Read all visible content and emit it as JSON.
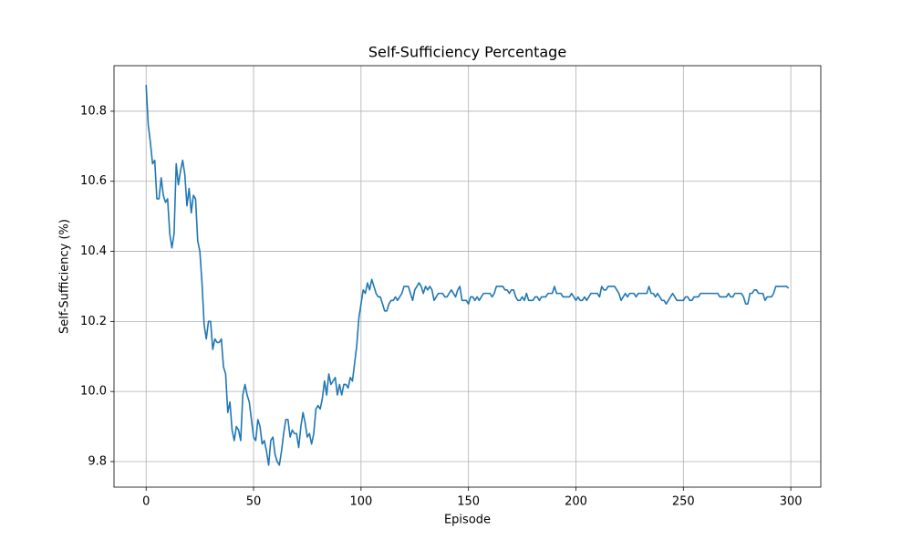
{
  "chart_data": {
    "type": "line",
    "title": "Self-Sufficiency Percentage",
    "xlabel": "Episode",
    "ylabel": "Self-Sufficiency (%)",
    "x": [
      0,
      1,
      2,
      3,
      4,
      5,
      6,
      7,
      8,
      9,
      10,
      11,
      12,
      13,
      14,
      15,
      16,
      17,
      18,
      19,
      20,
      21,
      22,
      23,
      24,
      25,
      26,
      27,
      28,
      29,
      30,
      31,
      32,
      33,
      34,
      35,
      36,
      37,
      38,
      39,
      40,
      41,
      42,
      43,
      44,
      45,
      46,
      47,
      48,
      49,
      50,
      51,
      52,
      53,
      54,
      55,
      56,
      57,
      58,
      59,
      60,
      61,
      62,
      63,
      64,
      65,
      66,
      67,
      68,
      69,
      70,
      71,
      72,
      73,
      74,
      75,
      76,
      77,
      78,
      79,
      80,
      81,
      82,
      83,
      84,
      85,
      86,
      87,
      88,
      89,
      90,
      91,
      92,
      93,
      94,
      95,
      96,
      97,
      98,
      99,
      100,
      101,
      102,
      103,
      104,
      105,
      106,
      107,
      108,
      109,
      110,
      111,
      112,
      113,
      114,
      115,
      116,
      117,
      118,
      119,
      120,
      121,
      122,
      123,
      124,
      125,
      126,
      127,
      128,
      129,
      130,
      131,
      132,
      133,
      134,
      135,
      136,
      137,
      138,
      139,
      140,
      141,
      142,
      143,
      144,
      145,
      146,
      147,
      148,
      149,
      150,
      151,
      152,
      153,
      154,
      155,
      156,
      157,
      158,
      159,
      160,
      161,
      162,
      163,
      164,
      165,
      166,
      167,
      168,
      169,
      170,
      171,
      172,
      173,
      174,
      175,
      176,
      177,
      178,
      179,
      180,
      181,
      182,
      183,
      184,
      185,
      186,
      187,
      188,
      189,
      190,
      191,
      192,
      193,
      194,
      195,
      196,
      197,
      198,
      199,
      200,
      201,
      202,
      203,
      204,
      205,
      206,
      207,
      208,
      209,
      210,
      211,
      212,
      213,
      214,
      215,
      216,
      217,
      218,
      219,
      220,
      221,
      222,
      223,
      224,
      225,
      226,
      227,
      228,
      229,
      230,
      231,
      232,
      233,
      234,
      235,
      236,
      237,
      238,
      239,
      240,
      241,
      242,
      243,
      244,
      245,
      246,
      247,
      248,
      249,
      250,
      251,
      252,
      253,
      254,
      255,
      256,
      257,
      258,
      259,
      260,
      261,
      262,
      263,
      264,
      265,
      266,
      267,
      268,
      269,
      270,
      271,
      272,
      273,
      274,
      275,
      276,
      277,
      278,
      279,
      280,
      281,
      282,
      283,
      284,
      285,
      286,
      287,
      288,
      289,
      290,
      291,
      292,
      293,
      294,
      295,
      296,
      297,
      298,
      299
    ],
    "series": [
      {
        "name": "Self-Sufficiency",
        "color": "#1f77b4",
        "values": [
          10.875,
          10.76,
          10.71,
          10.65,
          10.66,
          10.55,
          10.55,
          10.61,
          10.56,
          10.54,
          10.55,
          10.45,
          10.41,
          10.45,
          10.65,
          10.59,
          10.63,
          10.66,
          10.62,
          10.53,
          10.58,
          10.51,
          10.56,
          10.55,
          10.43,
          10.4,
          10.31,
          10.19,
          10.15,
          10.2,
          10.2,
          10.12,
          10.15,
          10.14,
          10.14,
          10.15,
          10.07,
          10.05,
          9.94,
          9.97,
          9.89,
          9.86,
          9.9,
          9.89,
          9.86,
          9.99,
          10.02,
          9.99,
          9.97,
          9.92,
          9.87,
          9.86,
          9.92,
          9.9,
          9.85,
          9.86,
          9.83,
          9.79,
          9.86,
          9.87,
          9.82,
          9.8,
          9.79,
          9.83,
          9.88,
          9.92,
          9.92,
          9.87,
          9.89,
          9.88,
          9.88,
          9.84,
          9.9,
          9.94,
          9.91,
          9.87,
          9.88,
          9.85,
          9.88,
          9.95,
          9.96,
          9.95,
          9.98,
          10.03,
          9.99,
          10.05,
          10.02,
          10.03,
          10.04,
          9.99,
          10.02,
          9.99,
          10.02,
          10.02,
          10.01,
          10.04,
          10.03,
          10.08,
          10.13,
          10.21,
          10.25,
          10.29,
          10.28,
          10.31,
          10.29,
          10.32,
          10.3,
          10.28,
          10.27,
          10.27,
          10.25,
          10.23,
          10.23,
          10.25,
          10.26,
          10.26,
          10.27,
          10.26,
          10.27,
          10.28,
          10.3,
          10.3,
          10.3,
          10.28,
          10.26,
          10.29,
          10.3,
          10.31,
          10.3,
          10.28,
          10.3,
          10.29,
          10.3,
          10.29,
          10.26,
          10.27,
          10.28,
          10.28,
          10.28,
          10.27,
          10.27,
          10.28,
          10.29,
          10.28,
          10.27,
          10.29,
          10.3,
          10.26,
          10.26,
          10.26,
          10.25,
          10.27,
          10.27,
          10.26,
          10.27,
          10.26,
          10.27,
          10.28,
          10.28,
          10.28,
          10.28,
          10.27,
          10.28,
          10.3,
          10.3,
          10.3,
          10.3,
          10.29,
          10.29,
          10.28,
          10.29,
          10.29,
          10.27,
          10.26,
          10.26,
          10.27,
          10.26,
          10.28,
          10.26,
          10.26,
          10.26,
          10.27,
          10.27,
          10.26,
          10.27,
          10.27,
          10.27,
          10.28,
          10.28,
          10.28,
          10.3,
          10.28,
          10.28,
          10.28,
          10.27,
          10.27,
          10.27,
          10.27,
          10.28,
          10.27,
          10.26,
          10.27,
          10.26,
          10.26,
          10.27,
          10.26,
          10.27,
          10.28,
          10.28,
          10.28,
          10.28,
          10.27,
          10.3,
          10.29,
          10.29,
          10.3,
          10.3,
          10.3,
          10.3,
          10.29,
          10.28,
          10.26,
          10.27,
          10.28,
          10.27,
          10.28,
          10.28,
          10.28,
          10.27,
          10.28,
          10.28,
          10.28,
          10.28,
          10.28,
          10.3,
          10.28,
          10.28,
          10.27,
          10.28,
          10.27,
          10.26,
          10.26,
          10.25,
          10.26,
          10.27,
          10.28,
          10.27,
          10.26,
          10.26,
          10.26,
          10.26,
          10.27,
          10.27,
          10.26,
          10.26,
          10.27,
          10.27,
          10.27,
          10.28,
          10.28,
          10.28,
          10.28,
          10.28,
          10.28,
          10.28,
          10.28,
          10.28,
          10.27,
          10.27,
          10.27,
          10.27,
          10.28,
          10.27,
          10.27,
          10.28,
          10.28,
          10.28,
          10.28,
          10.27,
          10.25,
          10.25,
          10.28,
          10.28,
          10.29,
          10.29,
          10.28,
          10.28,
          10.28,
          10.26,
          10.27,
          10.27,
          10.27,
          10.28,
          10.3,
          10.3,
          10.3,
          10.3,
          10.3,
          10.3,
          10.295
        ]
      }
    ],
    "xlim": [
      -14.95,
      313.95
    ],
    "xticks": [
      0,
      50,
      100,
      150,
      200,
      250,
      300
    ],
    "ylim": [
      9.727,
      10.93
    ],
    "yticks": [
      9.8,
      {
        "value": 10,
        "label": "10.0"
      },
      10.2,
      10.4,
      10.6,
      10.8
    ],
    "grid": true
  }
}
